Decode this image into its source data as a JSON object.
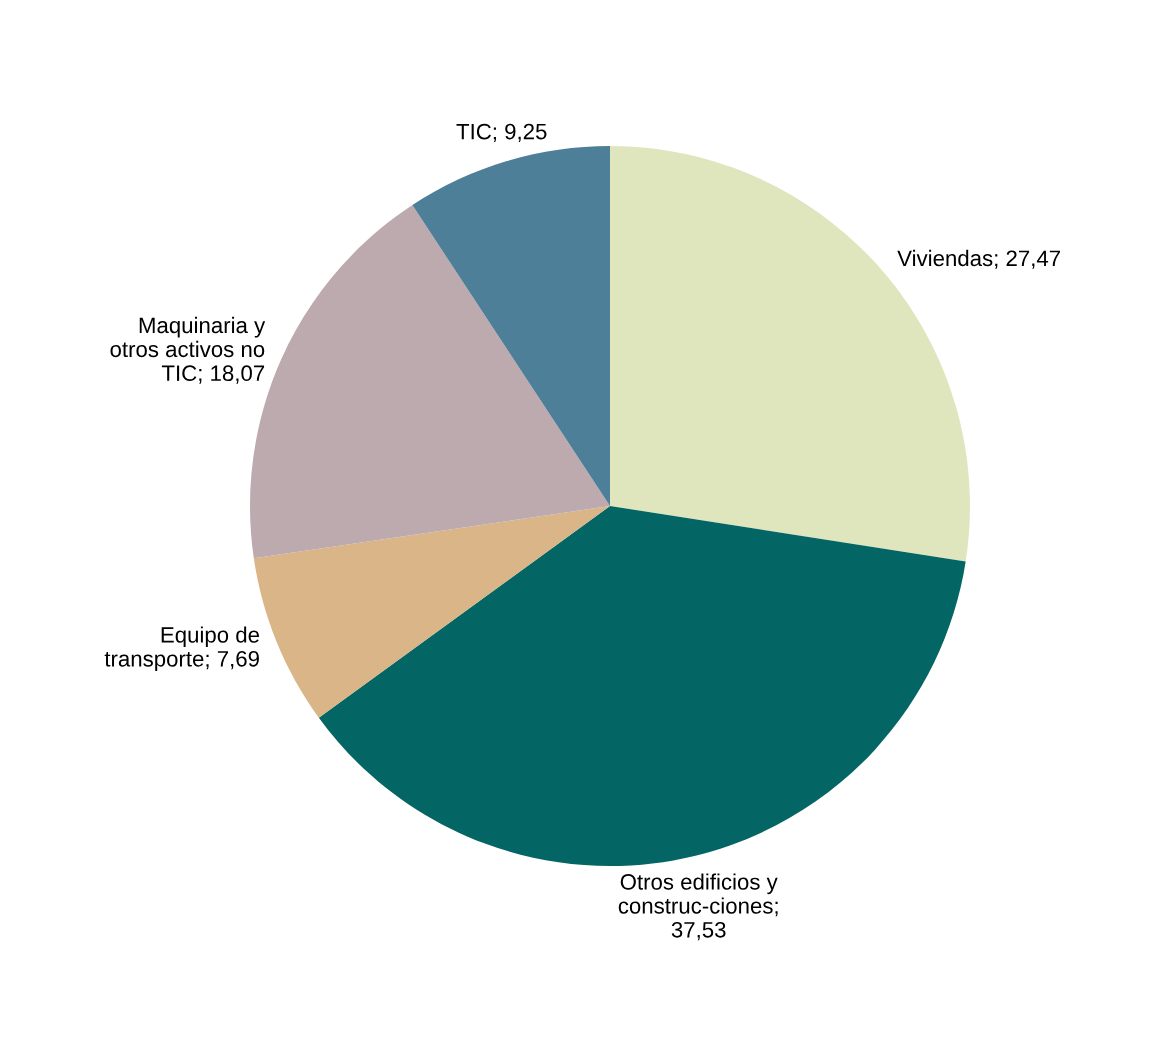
{
  "chart_data": {
    "type": "pie",
    "categories": [
      "Viviendas; 27,47",
      "Otros edificios y\nconstruc-ciones;\n37,53",
      "Equipo de\ntransporte; 7,69",
      "Maquinaria y\notros activos no\nTIC; 18,07",
      "TIC; 9,25"
    ],
    "values": [
      27.47,
      37.53,
      7.69,
      18.07,
      9.25
    ],
    "colors": [
      "#dfe6be",
      "#046664",
      "#d9b587",
      "#bcaaae",
      "#4e7f99"
    ],
    "legend": false
  }
}
